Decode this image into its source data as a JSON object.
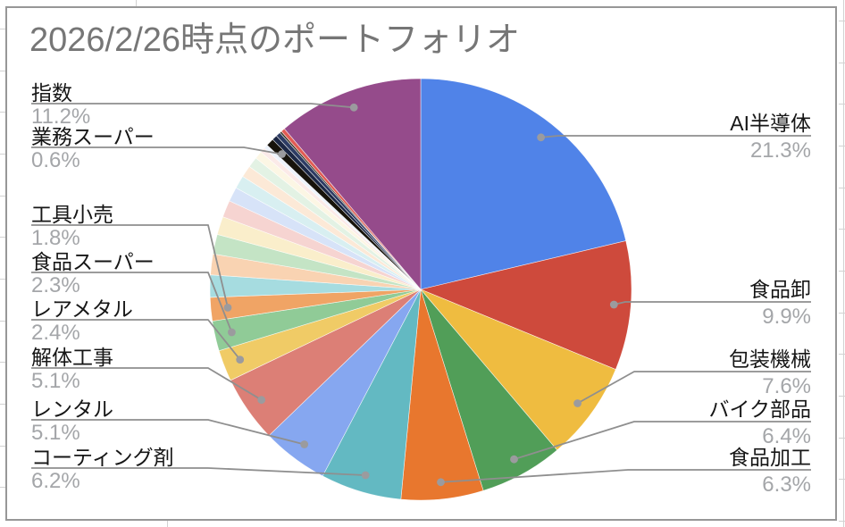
{
  "sheet": {
    "background": "#ffffff",
    "gridline_color": "#d2d2d2",
    "chart_border_color": "#979797"
  },
  "chart_data": {
    "type": "pie",
    "title": "2026/2/26時点のポートフォリオ",
    "unit": "percent",
    "start_angle_deg": 0,
    "direction": "clockwise",
    "legend_position": "callout-labels",
    "title_color": "#767676",
    "label_color": "#161616",
    "pct_color": "#a4a6a9",
    "callout_line_color": "#8f8f8f",
    "callout_dot_color": "#9b9b9e",
    "slices": [
      {
        "name": "AI半導体",
        "value": 21.3,
        "color": "#5083E8",
        "label_side": "right"
      },
      {
        "name": "食品卸",
        "value": 9.9,
        "color": "#CE4A3C",
        "label_side": "right"
      },
      {
        "name": "包装機械",
        "value": 7.6,
        "color": "#EFBC40",
        "label_side": "right"
      },
      {
        "name": "バイク部品",
        "value": 6.4,
        "color": "#519E58",
        "label_side": "right"
      },
      {
        "name": "食品加工",
        "value": 6.3,
        "color": "#E8772E",
        "label_side": "right"
      },
      {
        "name": "コーティング剤",
        "value": 6.2,
        "color": "#63B9C2",
        "label_side": "left"
      },
      {
        "name": "レンタル",
        "value": 5.1,
        "color": "#86A7F0",
        "label_side": "left"
      },
      {
        "name": "解体工事",
        "value": 5.1,
        "color": "#DC7F76",
        "label_side": "left"
      },
      {
        "name": "レアメタル",
        "value": 2.4,
        "color": "#F0CB66",
        "label_side": "left"
      },
      {
        "name": "食品スーパー",
        "value": 2.3,
        "color": "#90CB97",
        "label_side": "left"
      },
      {
        "name": "工具小売",
        "value": 1.8,
        "color": "#F0A465",
        "label_side": "left"
      },
      {
        "name": null,
        "value": 1.7,
        "color": "#A6DCE0",
        "label_side": null
      },
      {
        "name": null,
        "value": 1.6,
        "color": "#F9D3B2",
        "label_side": null
      },
      {
        "name": null,
        "value": 1.5,
        "color": "#C4E4C5",
        "label_side": null
      },
      {
        "name": null,
        "value": 1.4,
        "color": "#FAEECB",
        "label_side": null
      },
      {
        "name": null,
        "value": 1.3,
        "color": "#F6D4D1",
        "label_side": null
      },
      {
        "name": null,
        "value": 1.1,
        "color": "#D7E3F8",
        "label_side": null
      },
      {
        "name": null,
        "value": 1.0,
        "color": "#D8EFF1",
        "label_side": null
      },
      {
        "name": null,
        "value": 0.9,
        "color": "#FCE9D7",
        "label_side": null
      },
      {
        "name": null,
        "value": 0.8,
        "color": "#E3F2E4",
        "label_side": null
      },
      {
        "name": null,
        "value": 0.6,
        "color": "#FCF6E4",
        "label_side": null
      },
      {
        "name": null,
        "value": 0.4,
        "color": "#FBEAE8",
        "label_side": null
      },
      {
        "name": null,
        "value": 0.3,
        "color": "#EDF3FC",
        "label_side": null
      },
      {
        "name": "業務スーパー",
        "value": 0.6,
        "color": "#17130B",
        "label_side": "left"
      },
      {
        "name": null,
        "value": 0.4,
        "color": "#1C2744",
        "label_side": null
      },
      {
        "name": null,
        "value": 0.35,
        "color": "#2D3C64",
        "label_side": null
      },
      {
        "name": null,
        "value": 0.15,
        "color": "#3A3423",
        "label_side": null
      },
      {
        "name": null,
        "value": 0.3,
        "color": "#E15C54",
        "label_side": null
      },
      {
        "name": "指数",
        "value": 11.2,
        "color": "#954B8B",
        "label_side": "left"
      }
    ]
  }
}
